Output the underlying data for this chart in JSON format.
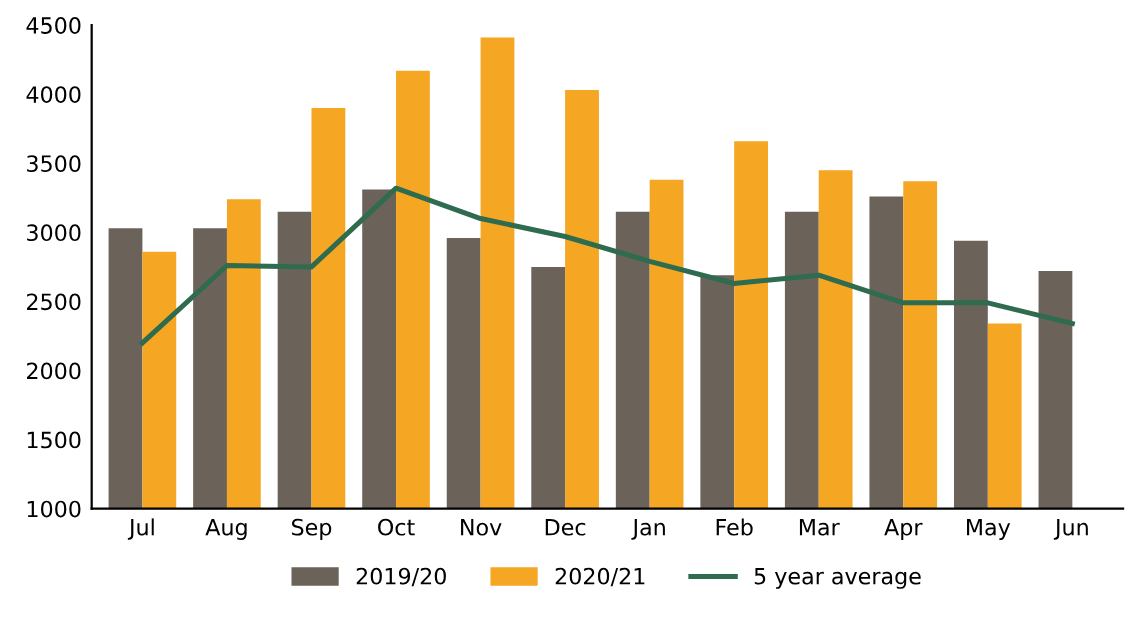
{
  "chart_data": {
    "type": "bar",
    "categories": [
      "Jul",
      "Aug",
      "Sep",
      "Oct",
      "Nov",
      "Dec",
      "Jan",
      "Feb",
      "Mar",
      "Apr",
      "May",
      "Jun"
    ],
    "series": [
      {
        "name": "2019/20",
        "color": "#6b635a",
        "values": [
          3030,
          3030,
          3150,
          3310,
          2960,
          2750,
          3150,
          2690,
          3150,
          3260,
          2940,
          2720
        ]
      },
      {
        "name": "2020/21",
        "color": "#f5a623",
        "values": [
          2860,
          3240,
          3900,
          4170,
          4410,
          4030,
          3380,
          3660,
          3450,
          3370,
          2340,
          null
        ]
      },
      {
        "name": "5 year average",
        "type": "line",
        "color": "#2e6b4f",
        "values": [
          2200,
          2760,
          2750,
          3320,
          3100,
          2970,
          2790,
          2630,
          2690,
          2490,
          2490,
          2340
        ]
      }
    ],
    "ylim": [
      1000,
      4500
    ],
    "yticks": [
      1000,
      1500,
      2000,
      2500,
      3000,
      3500,
      4000,
      4500
    ],
    "grid": false,
    "legend": "bottom"
  }
}
